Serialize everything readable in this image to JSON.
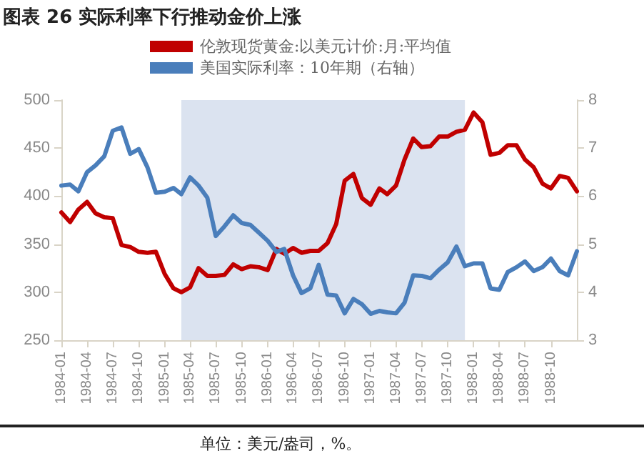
{
  "chart_data": {
    "type": "line",
    "title": "图表 26 实际利率下行推动金价上涨",
    "annotations": [
      "单位：美元/盎司，%。"
    ],
    "x": [
      "1984-01",
      "1984-02",
      "1984-03",
      "1984-04",
      "1984-05",
      "1984-06",
      "1984-07",
      "1984-08",
      "1984-09",
      "1984-10",
      "1984-11",
      "1984-12",
      "1985-01",
      "1985-02",
      "1985-03",
      "1985-04",
      "1985-05",
      "1985-06",
      "1985-07",
      "1985-08",
      "1985-09",
      "1985-10",
      "1985-11",
      "1985-12",
      "1986-01",
      "1986-02",
      "1986-03",
      "1986-04",
      "1986-05",
      "1986-06",
      "1986-07",
      "1986-08",
      "1986-09",
      "1986-10",
      "1986-11",
      "1986-12",
      "1987-01",
      "1987-02",
      "1987-03",
      "1987-04",
      "1987-05",
      "1987-06",
      "1987-07",
      "1987-08",
      "1987-09",
      "1987-10",
      "1987-11",
      "1987-12",
      "1988-01",
      "1988-02",
      "1988-03",
      "1988-04",
      "1988-05",
      "1988-06",
      "1988-07",
      "1988-08",
      "1988-09",
      "1988-10",
      "1988-11",
      "1988-12",
      "1989-01"
    ],
    "series": [
      {
        "name": "伦敦现货黄金:以美元计价:月:平均值",
        "color": "#c00000",
        "values": [
          383,
          373,
          386,
          394,
          382,
          378,
          377,
          349,
          347,
          342,
          341,
          342,
          319,
          304,
          300,
          305,
          325,
          317,
          317,
          318,
          329,
          324,
          327,
          326,
          323,
          345,
          340,
          346,
          341,
          343,
          343,
          351,
          371,
          416,
          423,
          398,
          391,
          408,
          402,
          411,
          438,
          460,
          451,
          452,
          462,
          462,
          467,
          469,
          487,
          477,
          443,
          445,
          453,
          453,
          438,
          430,
          413,
          408,
          421,
          419,
          405
        ]
      },
      {
        "name": "美国实际利率：10年期（右轴）",
        "color": "#4a7ebb",
        "axis": "y2",
        "values": [
          6.22,
          6.24,
          6.1,
          6.5,
          6.64,
          6.83,
          7.36,
          7.43,
          6.88,
          6.98,
          6.6,
          6.07,
          6.09,
          6.17,
          6.04,
          6.39,
          6.22,
          5.97,
          5.17,
          5.37,
          5.6,
          5.44,
          5.4,
          5.24,
          5.07,
          4.84,
          4.9,
          4.35,
          3.98,
          4.08,
          4.57,
          3.95,
          3.93,
          3.56,
          3.86,
          3.75,
          3.55,
          3.61,
          3.58,
          3.56,
          3.78,
          4.35,
          4.34,
          4.29,
          4.47,
          4.62,
          4.95,
          4.54,
          4.6,
          4.6,
          4.08,
          4.05,
          4.42,
          4.52,
          4.64,
          4.44,
          4.52,
          4.7,
          4.44,
          4.35,
          4.85
        ]
      }
    ],
    "xlim": [
      "1984-01",
      "1989-01"
    ],
    "xticks": [
      "1984-01",
      "1984-04",
      "1984-07",
      "1984-10",
      "1985-01",
      "1985-04",
      "1985-07",
      "1985-10",
      "1986-01",
      "1986-04",
      "1986-07",
      "1986-10",
      "1987-01",
      "1987-04",
      "1987-07",
      "1987-10",
      "1988-01",
      "1988-04",
      "1988-07",
      "1988-10"
    ],
    "ylim": [
      250,
      500
    ],
    "yticks": [
      250,
      300,
      350,
      400,
      450,
      500
    ],
    "y2lim": [
      3,
      8
    ],
    "y2ticks": [
      3,
      4,
      5,
      6,
      7,
      8
    ],
    "bands": [
      {
        "axis": "x",
        "from": "1985-03",
        "to": "1987-12",
        "color": "#dbe3f0"
      }
    ],
    "legend": "top",
    "grid": false,
    "marker": "none",
    "line_style": "solid"
  }
}
